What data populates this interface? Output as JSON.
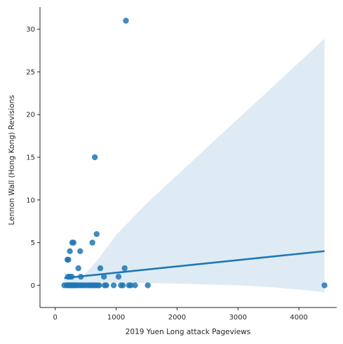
{
  "chart_data": {
    "type": "scatter",
    "title": "",
    "xlabel": "2019 Yuen Long attack Pageviews",
    "ylabel": "Lennon Wall (Hong Kong) Revisions",
    "xlim": [
      -250,
      4620
    ],
    "ylim": [
      -2.6,
      32.6
    ],
    "xticks": [
      0,
      1000,
      2000,
      3000,
      4000
    ],
    "yticks": [
      0,
      5,
      10,
      15,
      20,
      25,
      30
    ],
    "grid": false,
    "colors": {
      "points": "#1f77b4",
      "line": "#1f77b4",
      "band": "#1f77b4"
    },
    "points": [
      {
        "x": 150,
        "y": 0
      },
      {
        "x": 190,
        "y": 0
      },
      {
        "x": 210,
        "y": 0
      },
      {
        "x": 230,
        "y": 0
      },
      {
        "x": 250,
        "y": 0
      },
      {
        "x": 270,
        "y": 0
      },
      {
        "x": 290,
        "y": 0
      },
      {
        "x": 310,
        "y": 0
      },
      {
        "x": 330,
        "y": 0
      },
      {
        "x": 350,
        "y": 0
      },
      {
        "x": 390,
        "y": 0
      },
      {
        "x": 420,
        "y": 0
      },
      {
        "x": 450,
        "y": 0
      },
      {
        "x": 480,
        "y": 0
      },
      {
        "x": 520,
        "y": 0
      },
      {
        "x": 550,
        "y": 0
      },
      {
        "x": 580,
        "y": 0
      },
      {
        "x": 610,
        "y": 0
      },
      {
        "x": 640,
        "y": 0
      },
      {
        "x": 670,
        "y": 0
      },
      {
        "x": 700,
        "y": 0
      },
      {
        "x": 720,
        "y": 0
      },
      {
        "x": 810,
        "y": 0
      },
      {
        "x": 840,
        "y": 0
      },
      {
        "x": 960,
        "y": 0
      },
      {
        "x": 1080,
        "y": 0
      },
      {
        "x": 1110,
        "y": 0
      },
      {
        "x": 1210,
        "y": 0
      },
      {
        "x": 1240,
        "y": 0
      },
      {
        "x": 1310,
        "y": 0
      },
      {
        "x": 1520,
        "y": 0
      },
      {
        "x": 4420,
        "y": 0
      },
      {
        "x": 210,
        "y": 1
      },
      {
        "x": 240,
        "y": 1
      },
      {
        "x": 270,
        "y": 1
      },
      {
        "x": 420,
        "y": 1
      },
      {
        "x": 800,
        "y": 1
      },
      {
        "x": 1040,
        "y": 1
      },
      {
        "x": 380,
        "y": 2
      },
      {
        "x": 740,
        "y": 2
      },
      {
        "x": 1140,
        "y": 2
      },
      {
        "x": 200,
        "y": 3
      },
      {
        "x": 215,
        "y": 3
      },
      {
        "x": 240,
        "y": 4
      },
      {
        "x": 410,
        "y": 4
      },
      {
        "x": 280,
        "y": 5
      },
      {
        "x": 300,
        "y": 5
      },
      {
        "x": 610,
        "y": 5
      },
      {
        "x": 680,
        "y": 6
      },
      {
        "x": 650,
        "y": 15
      },
      {
        "x": 1160,
        "y": 31
      }
    ],
    "regression": {
      "x": [
        150,
        4420
      ],
      "y": [
        0.85,
        4.0
      ],
      "ci_upper": [
        [
          150,
          1.5
        ],
        [
          300,
          0.8
        ],
        [
          450,
          1.0
        ],
        [
          700,
          3.0
        ],
        [
          1000,
          5.9
        ],
        [
          1500,
          9.6
        ],
        [
          2000,
          12.9
        ],
        [
          2500,
          16.2
        ],
        [
          3000,
          19.5
        ],
        [
          3500,
          22.8
        ],
        [
          4000,
          26.1
        ],
        [
          4420,
          28.9
        ]
      ],
      "ci_lower": [
        [
          4420,
          -0.8
        ],
        [
          4000,
          -0.5
        ],
        [
          3500,
          -0.2
        ],
        [
          3000,
          0.0
        ],
        [
          2500,
          0.1
        ],
        [
          2000,
          0.2
        ],
        [
          1500,
          0.25
        ],
        [
          1000,
          0.3
        ],
        [
          700,
          0.35
        ],
        [
          450,
          0.25
        ],
        [
          300,
          0.2
        ],
        [
          150,
          0.1
        ]
      ]
    }
  }
}
